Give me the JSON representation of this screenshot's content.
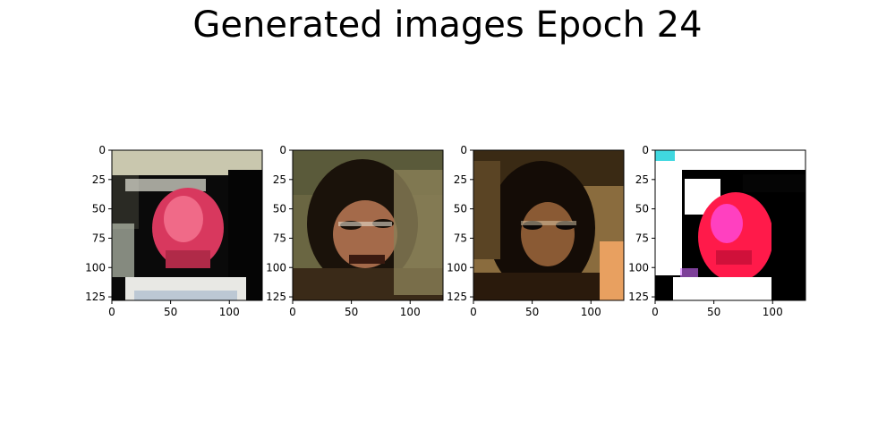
{
  "chart_data": {
    "type": "image_grid",
    "title": "Generated images Epoch 24",
    "image_size": [
      128,
      128
    ],
    "x_ticks": [
      0,
      50,
      100
    ],
    "y_ticks": [
      0,
      25,
      50,
      75,
      100,
      125
    ],
    "panels": [
      {
        "content": "generated-face-image-1",
        "palette": [
          "#c8c8b0",
          "#0a0a0a",
          "#e8406a",
          "#f0f0f0"
        ]
      },
      {
        "content": "generated-face-image-2",
        "palette": [
          "#6e6a44",
          "#120d08",
          "#c87a58",
          "#8a7a55"
        ]
      },
      {
        "content": "generated-face-image-3",
        "palette": [
          "#9a7a48",
          "#100a06",
          "#c8905a",
          "#e8a060"
        ]
      },
      {
        "content": "generated-face-image-4",
        "palette": [
          "#ffffff",
          "#000000",
          "#ff1a50",
          "#ff50c8"
        ]
      }
    ]
  }
}
